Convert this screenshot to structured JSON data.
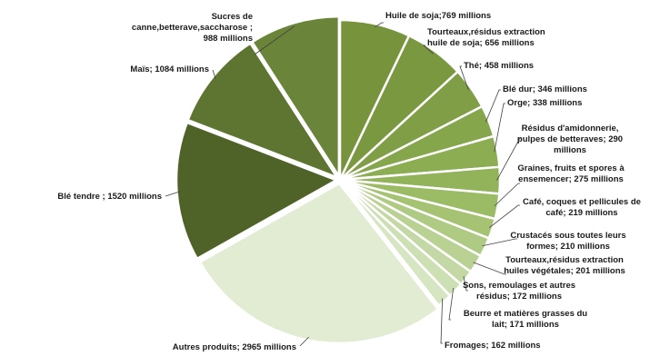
{
  "chart_data": {
    "type": "pie",
    "exploded": true,
    "title": "",
    "legend": "none",
    "slices": [
      {
        "label_lines": [
          "Huile de soja;769 millions"
        ],
        "value": 769,
        "color": "#77933c"
      },
      {
        "label_lines": [
          "Tourteaux,résidus extraction",
          "huile de soja; 656 millions"
        ],
        "value": 656,
        "color": "#7a9840"
      },
      {
        "label_lines": [
          "Thé; 458 millions"
        ],
        "value": 458,
        "color": "#7f9e45"
      },
      {
        "label_lines": [
          "Blé dur; 346 millions"
        ],
        "value": 346,
        "color": "#86a64c"
      },
      {
        "label_lines": [
          "Orge; 338 millions"
        ],
        "value": 338,
        "color": "#8cad52"
      },
      {
        "label_lines": [
          "Résidus d'amidonnerie,",
          "pulpes de betteraves; 290",
          "millions"
        ],
        "value": 290,
        "color": "#92b35a"
      },
      {
        "label_lines": [
          "Graines, fruits et spores à",
          "ensemencer; 275 millions"
        ],
        "value": 275,
        "color": "#9bbb64"
      },
      {
        "label_lines": [
          "Café, coques et pellicules de",
          "café; 219 millions"
        ],
        "value": 219,
        "color": "#a5c372"
      },
      {
        "label_lines": [
          "Crustacés sous toutes leurs",
          "formes; 210 millions"
        ],
        "value": 210,
        "color": "#afca82"
      },
      {
        "label_lines": [
          "Tourteaux,résidus extraction",
          "huiles végétales; 201 millions"
        ],
        "value": 201,
        "color": "#b9d193"
      },
      {
        "label_lines": [
          "Sons, remoulages et autres",
          "résidus; 172 millions"
        ],
        "value": 172,
        "color": "#c3d8a4"
      },
      {
        "label_lines": [
          "Beurre et matières grasses du",
          "lait; 171 millions"
        ],
        "value": 171,
        "color": "#cde0b4"
      },
      {
        "label_lines": [
          "Fromages; 162 millions"
        ],
        "value": 162,
        "color": "#d6e6c3"
      },
      {
        "label_lines": [
          "Autres produits; 2965 millions"
        ],
        "value": 2965,
        "color": "#e1ecd3"
      },
      {
        "label_lines": [
          "Blé tendre ; 1520 millions"
        ],
        "value": 1520,
        "color": "#4f6228"
      },
      {
        "label_lines": [
          "Maïs; 1084 millions"
        ],
        "value": 1084,
        "color": "#5e7532"
      },
      {
        "label_lines": [
          "Sucres de",
          "canne,betterave,saccharose ;",
          "988 millions"
        ],
        "value": 988,
        "color": "#6a8439"
      }
    ]
  }
}
